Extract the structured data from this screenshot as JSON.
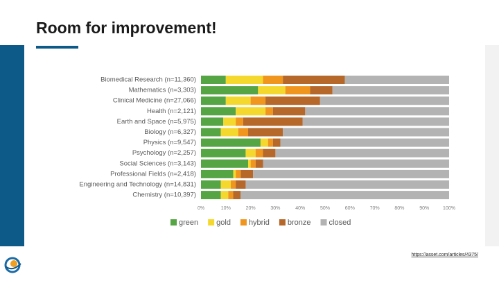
{
  "chart_data": {
    "type": "stacked-bar-horizontal",
    "title": "Room for improvement!",
    "source": "https://asset.com/articles/4375/",
    "categories": [
      "Biomedical Research (n=11,360)",
      "Mathematics (n=3,303)",
      "Clinical Medicine (n=27,066)",
      "Health (n=2,121)",
      "Earth and Space (n=5,975)",
      "Biology (n=6,327)",
      "Physics (n=9,547)",
      "Psychology (n=2,257)",
      "Social Sciences (n=3,143)",
      "Professional Fields (n=2,418)",
      "Engineering and Technology (n=14,831)",
      "Chemistry (n=10,397)"
    ],
    "series": [
      {
        "name": "green",
        "color": "#55a545",
        "values": [
          10,
          23,
          10,
          14,
          9,
          8,
          24,
          18,
          19,
          13,
          8,
          8
        ]
      },
      {
        "name": "gold",
        "color": "#f5d82e",
        "values": [
          15,
          11,
          10,
          12,
          5,
          7,
          3,
          4,
          1,
          1,
          4,
          3
        ]
      },
      {
        "name": "hybrid",
        "color": "#f0961e",
        "values": [
          8,
          10,
          6,
          3,
          3,
          4,
          2,
          3,
          2,
          2,
          2,
          2
        ]
      },
      {
        "name": "bronze",
        "color": "#b5682a",
        "values": [
          25,
          9,
          22,
          13,
          24,
          14,
          3,
          5,
          3,
          5,
          4,
          3
        ]
      },
      {
        "name": "closed",
        "color": "#b3b3b3",
        "values": [
          42,
          47,
          52,
          58,
          59,
          67,
          68,
          70,
          75,
          79,
          82,
          84
        ]
      }
    ],
    "xlim": [
      0,
      100
    ],
    "xticks": [
      {
        "value": 0,
        "label": "0%"
      },
      {
        "value": 10,
        "label": "10%"
      },
      {
        "value": 20,
        "label": "20%"
      },
      {
        "value": 30,
        "label": "30%"
      },
      {
        "value": 40,
        "label": "40%"
      },
      {
        "value": 50,
        "label": "50%"
      },
      {
        "value": 60,
        "label": "60%"
      },
      {
        "value": 70,
        "label": "70%"
      },
      {
        "value": 80,
        "label": "80%"
      },
      {
        "value": 90,
        "label": "90%"
      },
      {
        "value": 100,
        "label": "100%"
      }
    ],
    "legend": "bottom"
  }
}
